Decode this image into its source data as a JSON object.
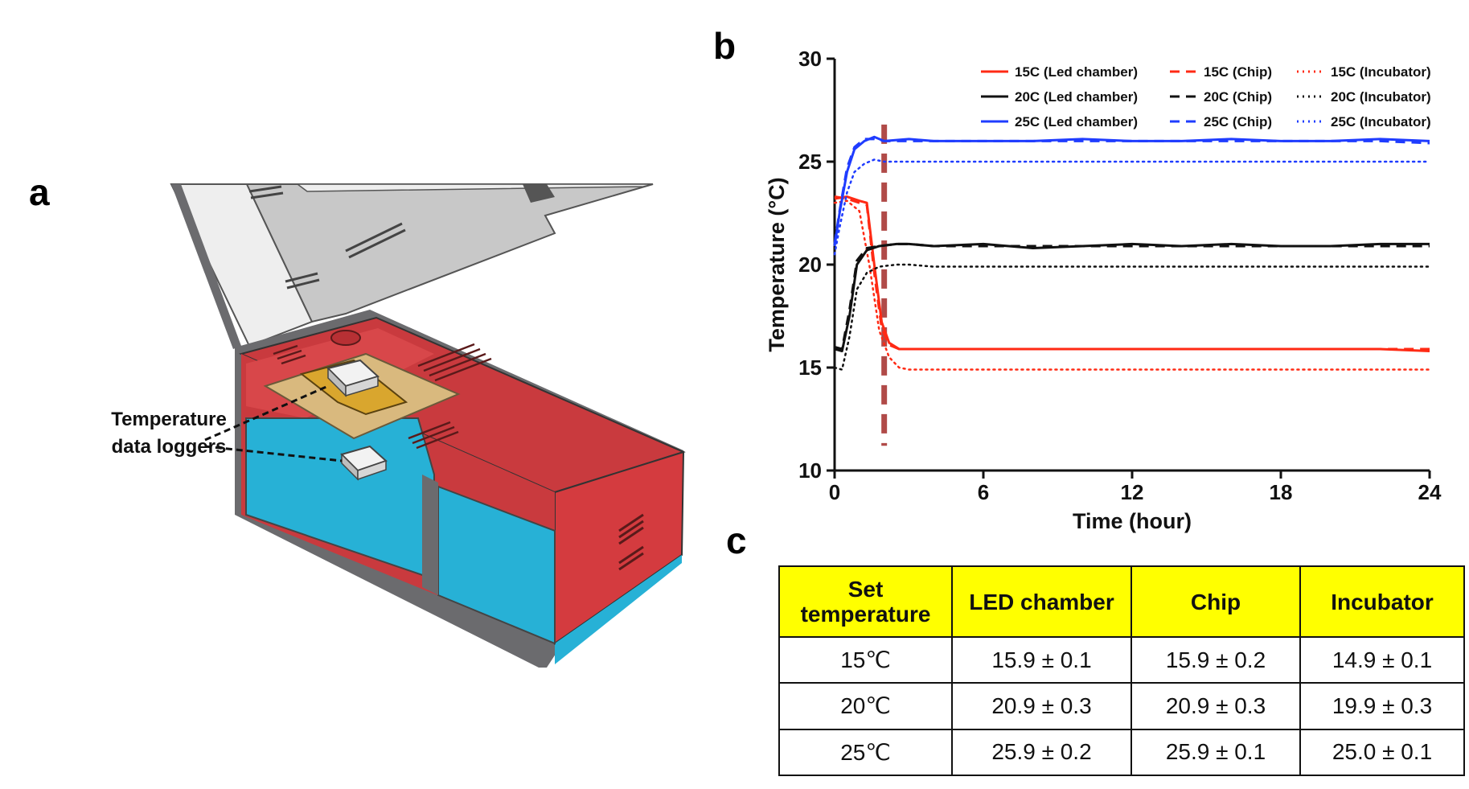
{
  "figure": {
    "panel_labels": {
      "a": "a",
      "b": "b",
      "c": "c"
    }
  },
  "panel_a": {
    "callout_line1": "Temperature",
    "callout_line2": "data loggers",
    "colors": {
      "housing": "#c93a3e",
      "interior": "#27b1d6",
      "frame": "#6b6b6e",
      "lid": "#eeeeee",
      "lid_inner": "#c8c8c8",
      "tray": "#d9b97e",
      "chip": "#d9a62e"
    }
  },
  "chart_data": {
    "type": "line",
    "xlabel": "Time (hour)",
    "ylabel": "Temperature (°C)",
    "xlim": [
      0,
      24
    ],
    "ylim": [
      10,
      30
    ],
    "xticks": [
      0,
      6,
      12,
      18,
      24
    ],
    "yticks": [
      10,
      15,
      20,
      25,
      30
    ],
    "grid": false,
    "legend_position": "top-right",
    "annotation": {
      "type": "vertical-dashed-line",
      "x": 2,
      "color": "#b04a48"
    },
    "series": [
      {
        "name": "15C (Led chamber)",
        "color": "#ff2a14",
        "style": "solid",
        "x": [
          0,
          0.5,
          1.0,
          1.3,
          1.6,
          1.9,
          2.2,
          2.6,
          3,
          4,
          6,
          8,
          10,
          12,
          14,
          16,
          18,
          20,
          22,
          24
        ],
        "y": [
          23.2,
          23.3,
          23.1,
          23.0,
          20.0,
          17.2,
          16.2,
          15.9,
          15.9,
          15.9,
          15.9,
          15.9,
          15.9,
          15.9,
          15.9,
          15.9,
          15.9,
          15.9,
          15.9,
          15.8
        ]
      },
      {
        "name": "15C (Chip)",
        "color": "#ff2a14",
        "style": "dashed",
        "x": [
          0,
          0.5,
          1.0,
          1.3,
          1.6,
          1.9,
          2.2,
          2.6,
          3,
          4,
          6,
          8,
          10,
          12,
          14,
          16,
          18,
          20,
          22,
          24
        ],
        "y": [
          23.3,
          23.2,
          23.0,
          22.9,
          19.6,
          16.9,
          16.1,
          15.9,
          15.9,
          15.9,
          15.9,
          15.9,
          15.9,
          15.9,
          15.9,
          15.9,
          15.9,
          15.9,
          15.9,
          15.9
        ]
      },
      {
        "name": "15C (Incubator)",
        "color": "#ff2a14",
        "style": "dotted",
        "x": [
          0,
          0.5,
          1.0,
          1.4,
          1.8,
          2.2,
          2.6,
          3,
          4,
          6,
          8,
          10,
          12,
          14,
          16,
          18,
          20,
          22,
          24
        ],
        "y": [
          23.0,
          23.1,
          22.6,
          20.0,
          16.8,
          15.5,
          15.0,
          14.9,
          14.9,
          14.9,
          14.9,
          14.9,
          14.9,
          14.9,
          14.9,
          14.9,
          14.9,
          14.9,
          14.9
        ]
      },
      {
        "name": "20C (Led chamber)",
        "color": "#111111",
        "style": "solid",
        "x": [
          0,
          0.3,
          0.6,
          0.9,
          1.3,
          1.8,
          2.5,
          3,
          4,
          6,
          8,
          10,
          12,
          14,
          16,
          18,
          20,
          22,
          24
        ],
        "y": [
          15.9,
          15.8,
          17.5,
          20.0,
          20.7,
          20.9,
          21.0,
          21.0,
          20.9,
          21.0,
          20.8,
          20.9,
          21.0,
          20.9,
          21.0,
          20.9,
          20.9,
          21.0,
          21.0
        ]
      },
      {
        "name": "20C (Chip)",
        "color": "#111111",
        "style": "dashed",
        "x": [
          0,
          0.3,
          0.6,
          0.9,
          1.3,
          1.8,
          2.5,
          3,
          4,
          6,
          8,
          10,
          12,
          14,
          16,
          18,
          20,
          22,
          24
        ],
        "y": [
          16.0,
          15.9,
          17.8,
          20.2,
          20.8,
          20.9,
          21.0,
          21.0,
          20.9,
          20.9,
          20.9,
          20.9,
          20.9,
          20.9,
          20.9,
          20.9,
          20.9,
          20.9,
          20.9
        ]
      },
      {
        "name": "20C (Incubator)",
        "color": "#111111",
        "style": "dotted",
        "x": [
          0,
          0.3,
          0.6,
          0.9,
          1.3,
          1.8,
          2.5,
          3,
          4,
          6,
          8,
          10,
          12,
          14,
          16,
          18,
          20,
          22,
          24
        ],
        "y": [
          15.0,
          14.9,
          16.5,
          18.8,
          19.6,
          19.9,
          20.0,
          20.0,
          19.9,
          19.9,
          19.9,
          19.9,
          19.9,
          19.9,
          19.9,
          19.9,
          19.9,
          19.9,
          19.9
        ]
      },
      {
        "name": "25C (Led chamber)",
        "color": "#1f3cff",
        "style": "solid",
        "x": [
          0,
          0.2,
          0.5,
          0.8,
          1.2,
          1.6,
          2.0,
          3,
          4,
          6,
          8,
          10,
          12,
          14,
          16,
          18,
          20,
          22,
          24
        ],
        "y": [
          20.9,
          22.5,
          24.5,
          25.6,
          26.0,
          26.2,
          26.0,
          26.1,
          26.0,
          26.0,
          26.0,
          26.1,
          26.0,
          26.0,
          26.1,
          26.0,
          26.0,
          26.1,
          26.0
        ]
      },
      {
        "name": "25C (Chip)",
        "color": "#1f3cff",
        "style": "dashed",
        "x": [
          0,
          0.2,
          0.5,
          0.8,
          1.2,
          1.6,
          2.0,
          3,
          4,
          6,
          8,
          10,
          12,
          14,
          16,
          18,
          20,
          22,
          24
        ],
        "y": [
          21.0,
          22.6,
          24.7,
          25.7,
          26.1,
          26.1,
          26.0,
          26.0,
          26.0,
          26.0,
          26.0,
          26.0,
          26.0,
          26.0,
          26.0,
          26.0,
          26.0,
          26.0,
          25.9
        ]
      },
      {
        "name": "25C (Incubator)",
        "color": "#1f3cff",
        "style": "dotted",
        "x": [
          0,
          0.2,
          0.5,
          0.8,
          1.2,
          1.6,
          2.0,
          3,
          4,
          6,
          8,
          10,
          12,
          14,
          16,
          18,
          20,
          22,
          24
        ],
        "y": [
          20.5,
          21.8,
          23.5,
          24.5,
          24.9,
          25.1,
          25.0,
          25.0,
          25.0,
          25.0,
          25.0,
          25.0,
          25.0,
          25.0,
          25.0,
          25.0,
          25.0,
          25.0,
          25.0
        ]
      }
    ]
  },
  "table": {
    "header_color": "#ffff00",
    "headers": [
      "Set temperature",
      "LED chamber",
      "Chip",
      "Incubator"
    ],
    "header_line1": "Set",
    "header_line2": "temperature",
    "rows": [
      [
        "15℃",
        "15.9 ± 0.1",
        "15.9 ± 0.2",
        "14.9 ± 0.1"
      ],
      [
        "20℃",
        "20.9 ± 0.3",
        "20.9 ± 0.3",
        "19.9 ± 0.3"
      ],
      [
        "25℃",
        "25.9 ± 0.2",
        "25.9 ± 0.1",
        "25.0 ± 0.1"
      ]
    ]
  }
}
